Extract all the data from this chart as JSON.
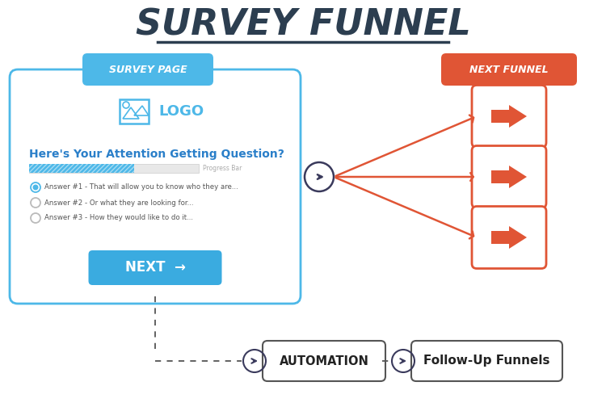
{
  "title": "SURVEY FUNNEL",
  "title_fontsize": 32,
  "bg_color": "#ffffff",
  "survey_page_label": "SURVEY PAGE",
  "next_funnel_label": "NEXT FUNNEL",
  "survey_box_color": "#4db8e8",
  "logo_text": "LOGO",
  "question_text": "Here's Your Attention Getting Question?",
  "answers": [
    "Answer #1 - That will allow you to know who they are...",
    "Answer #2 - Or what they are looking for...",
    "Answer #3 - How they would like to do it..."
  ],
  "next_btn_text": "NEXT  →",
  "next_btn_color": "#3aabe0",
  "progress_bar_color": "#4db8e8",
  "progress_bar_bg": "#e8e8e8",
  "arrow_color": "#e05535",
  "circle_color": "#3a3a5c",
  "automation_text": "AUTOMATION",
  "followup_text": "Follow-Up Funnels",
  "survey_label_bg": "#4db8e8",
  "next_funnel_label_bg": "#e05535",
  "label_text_color": "#ffffff",
  "question_color": "#2a7fc9",
  "dashed_line_color": "#555555",
  "title_color": "#2c3e50",
  "underline_color": "#2c3e50"
}
